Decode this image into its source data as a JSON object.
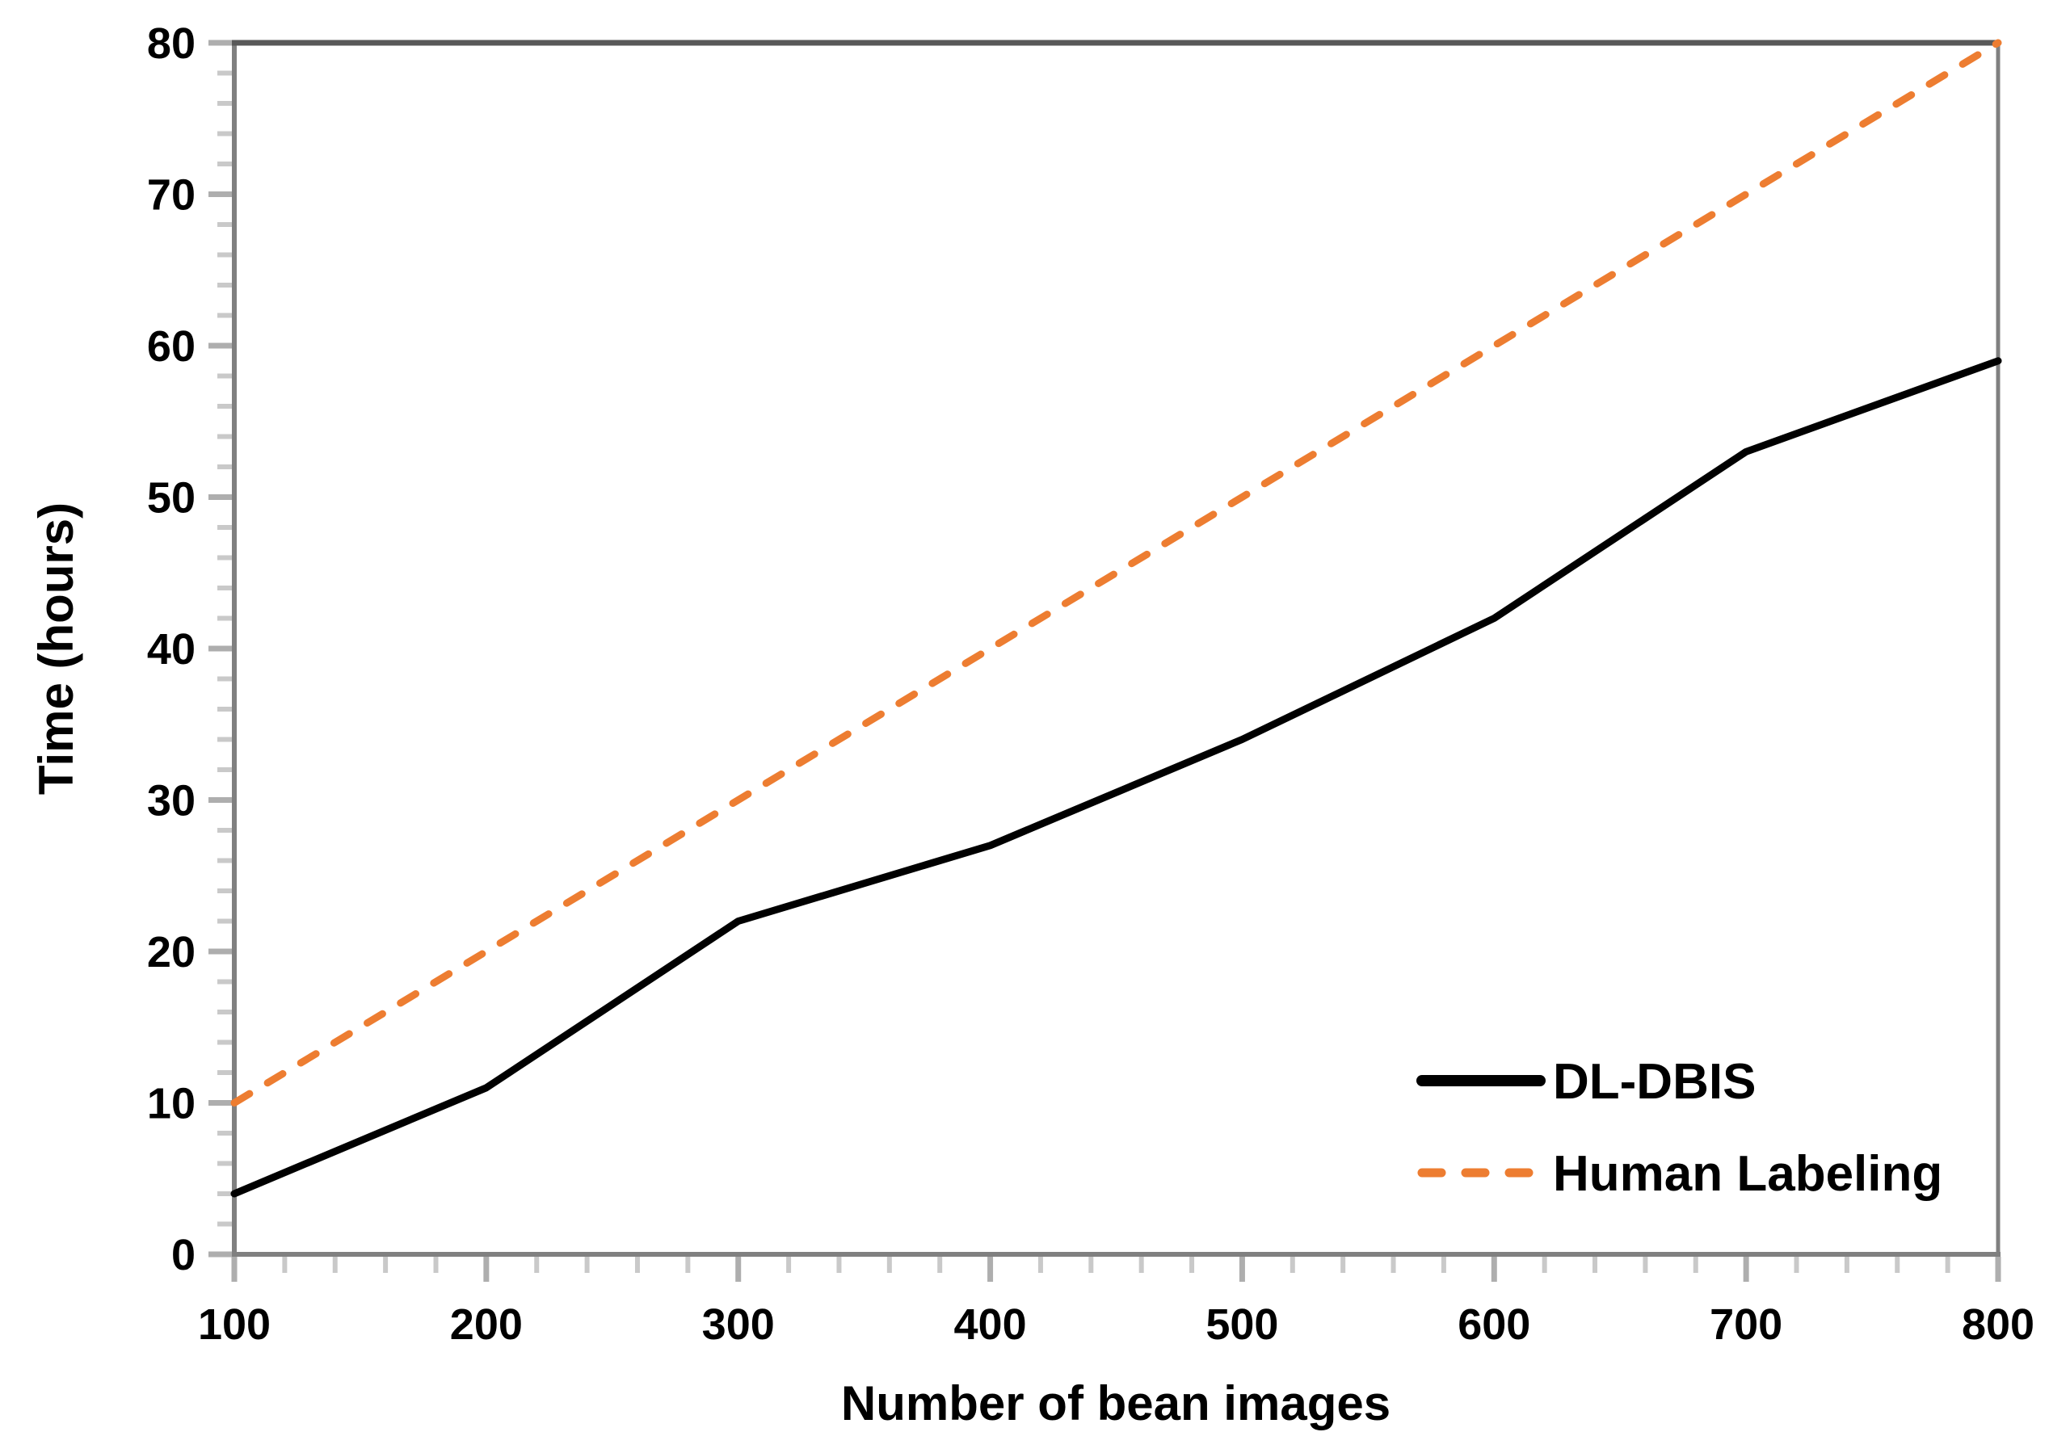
{
  "chart_data": {
    "type": "line",
    "title": "",
    "xlabel": "Number of bean images",
    "ylabel": "Time (hours)",
    "x": [
      100,
      200,
      300,
      400,
      500,
      600,
      700,
      800
    ],
    "series": [
      {
        "name": "DL-DBIS",
        "values": [
          4,
          11,
          22,
          27,
          34,
          42,
          53,
          59
        ],
        "color": "#000000",
        "style": "solid"
      },
      {
        "name": "Human Labeling",
        "values": [
          10,
          20,
          30,
          40,
          50,
          60,
          70,
          80
        ],
        "color": "#ED7D31",
        "style": "dashed"
      }
    ],
    "xlim": [
      100,
      800
    ],
    "ylim": [
      0,
      80
    ],
    "x_tick_labels": [
      "100",
      "200",
      "300",
      "400",
      "500",
      "600",
      "700",
      "800"
    ],
    "y_tick_labels": [
      "0",
      "10",
      "20",
      "30",
      "40",
      "50",
      "60",
      "70",
      "80"
    ],
    "x_major_step": 100,
    "x_minor_step": 20,
    "y_major_step": 10,
    "y_minor_step": 2,
    "grid": false,
    "legend_position": "inside-lower-right"
  },
  "colors": {
    "background": "#ffffff",
    "plot_border": "#808080",
    "top_border": "#595959",
    "major_tick": "#aeaeae",
    "minor_tick": "#c9c9c9",
    "text": "#000000",
    "accent_orange": "#ED7D31",
    "series_black": "#000000"
  }
}
